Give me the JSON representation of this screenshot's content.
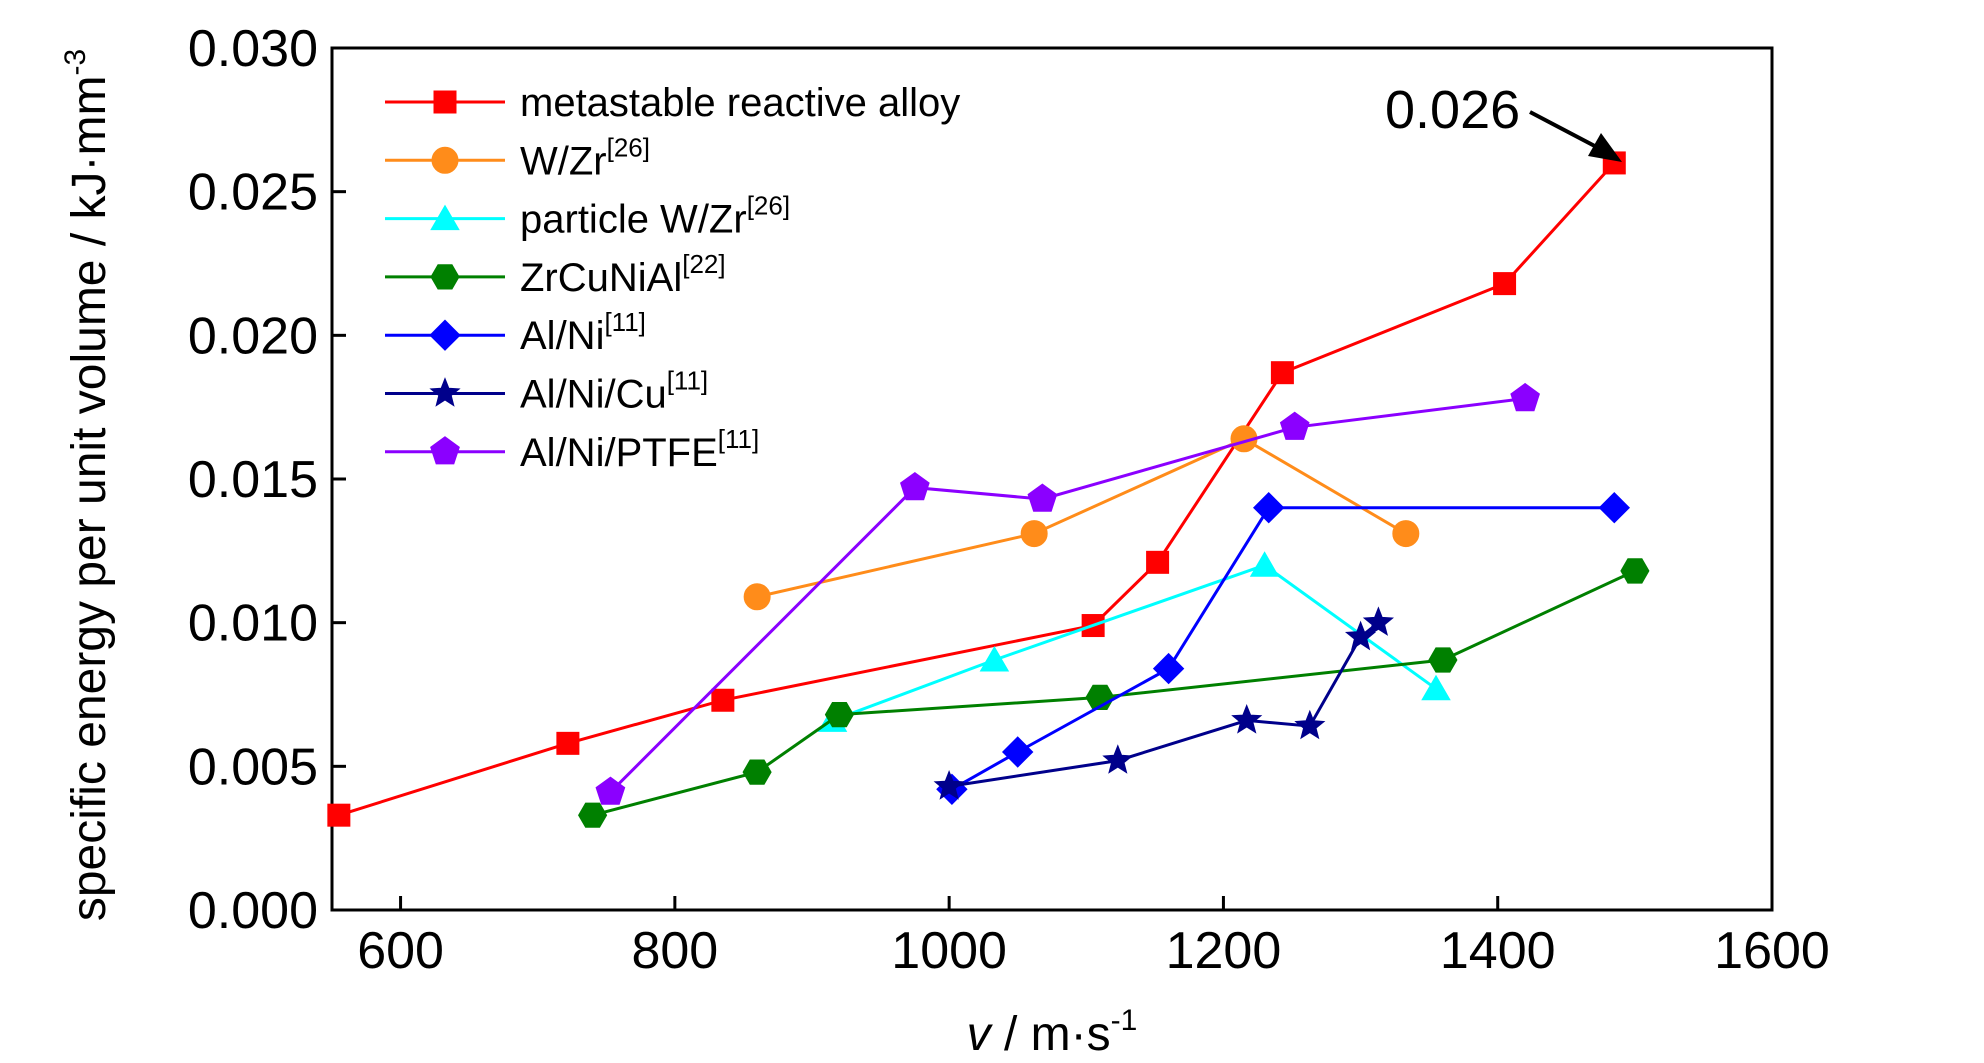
{
  "chart_data": {
    "type": "line",
    "xlabel": {
      "main": "v",
      "unit": " / m·s",
      "sup": "-1"
    },
    "ylabel": {
      "main": "specific energy per unit volume / kJ·mm",
      "sup": "-3"
    },
    "xlim": [
      550,
      1600
    ],
    "ylim": [
      0,
      0.03
    ],
    "x_ticks": [
      600,
      800,
      1000,
      1200,
      1400,
      1600
    ],
    "y_ticks": [
      0.0,
      0.005,
      0.01,
      0.015,
      0.02,
      0.025,
      0.03
    ],
    "x_tick_labels": [
      "600",
      "800",
      "1000",
      "1200",
      "1400",
      "1600"
    ],
    "y_tick_labels": [
      "0.000",
      "0.005",
      "0.010",
      "0.015",
      "0.020",
      "0.025",
      "0.030"
    ],
    "grid": false,
    "legend_position": "top-left",
    "annotation": {
      "text": "0.026",
      "target": [
        1485,
        0.026
      ]
    },
    "series": [
      {
        "name": "metastable reactive alloy",
        "sup": "",
        "color": "#ff0000",
        "marker": "square",
        "points": [
          [
            555,
            0.0033
          ],
          [
            722,
            0.0058
          ],
          [
            835,
            0.0073
          ],
          [
            1105,
            0.0099
          ],
          [
            1152,
            0.0121
          ],
          [
            1243,
            0.0187
          ],
          [
            1405,
            0.0218
          ],
          [
            1485,
            0.026
          ]
        ]
      },
      {
        "name": "W/Zr",
        "sup": "[26]",
        "color": "#ff8c1a",
        "marker": "circle",
        "points": [
          [
            860,
            0.0109
          ],
          [
            1062,
            0.0131
          ],
          [
            1215,
            0.0164
          ],
          [
            1333,
            0.0131
          ]
        ]
      },
      {
        "name": "particle W/Zr",
        "sup": "[26]",
        "color": "#00ffff",
        "marker": "triangle",
        "points": [
          [
            915,
            0.0066
          ],
          [
            1033,
            0.0087
          ],
          [
            1230,
            0.012
          ],
          [
            1355,
            0.0077
          ]
        ]
      },
      {
        "name": "ZrCuNiAl",
        "sup": "[22]",
        "color": "#008000",
        "marker": "hexagon",
        "points": [
          [
            740,
            0.0033
          ],
          [
            860,
            0.0048
          ],
          [
            920,
            0.0068
          ],
          [
            1110,
            0.0074
          ],
          [
            1360,
            0.0087
          ],
          [
            1500,
            0.0118
          ]
        ]
      },
      {
        "name": "Al/Ni",
        "sup": "[11]",
        "color": "#0000ff",
        "marker": "diamond",
        "points": [
          [
            1002,
            0.0042
          ],
          [
            1050,
            0.0055
          ],
          [
            1160,
            0.0084
          ],
          [
            1233,
            0.014
          ],
          [
            1485,
            0.014
          ]
        ]
      },
      {
        "name": "Al/Ni/Cu",
        "sup": "[11]",
        "color": "#00008b",
        "marker": "star",
        "points": [
          [
            1000,
            0.0043
          ],
          [
            1123,
            0.0052
          ],
          [
            1217,
            0.0066
          ],
          [
            1263,
            0.0064
          ],
          [
            1300,
            0.0095
          ],
          [
            1313,
            0.01
          ]
        ]
      },
      {
        "name": "Al/Ni/PTFE",
        "sup": "[11]",
        "color": "#8b00ff",
        "marker": "pentagon",
        "points": [
          [
            753,
            0.0041
          ],
          [
            975,
            0.0147
          ],
          [
            1068,
            0.0143
          ],
          [
            1252,
            0.0168
          ],
          [
            1420,
            0.0178
          ]
        ]
      }
    ]
  }
}
